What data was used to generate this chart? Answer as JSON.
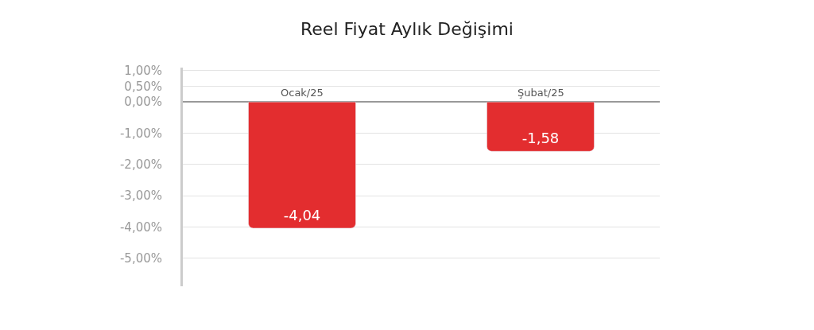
{
  "chart_data": {
    "type": "bar",
    "title": "Reel Fiyat Aylık Değişimi",
    "categories": [
      "Ocak/25",
      "Şubat/25"
    ],
    "values": [
      -4.04,
      -1.58
    ],
    "value_labels": [
      "-4,04",
      "-1,58"
    ],
    "color": "#e32d2f",
    "ylim": [
      -5.9,
      1.1
    ],
    "yticks": [
      {
        "value": 1,
        "label": "1,00%"
      },
      {
        "value": 0.5,
        "label": "0,50%"
      },
      {
        "value": 0,
        "label": "0,00%"
      },
      {
        "value": -1,
        "label": "-1,00%"
      },
      {
        "value": -2,
        "label": "-2,00%"
      },
      {
        "value": -3,
        "label": "-3,00%"
      },
      {
        "value": -4,
        "label": "-4,00%"
      },
      {
        "value": -5,
        "label": "-5,00%"
      }
    ],
    "grid": "y",
    "legend": false
  }
}
